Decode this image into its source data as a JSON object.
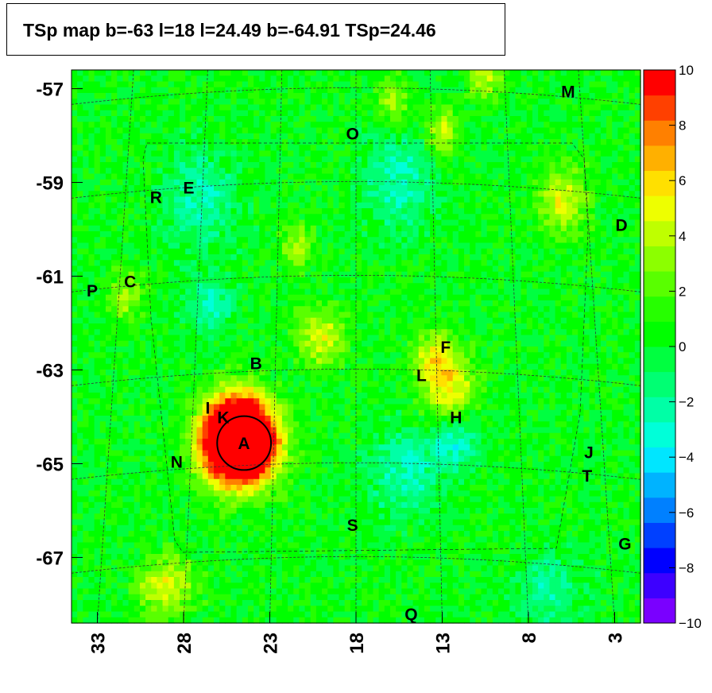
{
  "title": "TSp map b=-63 l=18 l=24.49 b=-64.91 TSp=24.46",
  "chart_data": {
    "type": "heatmap",
    "title": "TSp map b=-63 l=18 l=24.49 b=-64.91 TSp=24.46",
    "xlabel": "",
    "ylabel": "",
    "x_axis": {
      "reversed": true,
      "range": [
        34.5,
        1.5
      ],
      "ticks": [
        33,
        28,
        23,
        18,
        13,
        8,
        3
      ]
    },
    "y_axis": {
      "range": [
        -68.4,
        -56.6
      ],
      "ticks": [
        -57,
        -59,
        -61,
        -63,
        -65,
        -67
      ]
    },
    "colorbar": {
      "range": [
        -10,
        10
      ],
      "ticks": [
        10,
        8,
        6,
        4,
        2,
        0,
        -2,
        -4,
        -6,
        -8,
        -10
      ],
      "tick_labels": [
        "10",
        "8",
        "6",
        "4",
        "2",
        "0",
        "−2",
        "−4",
        "−6",
        "−8",
        "−10"
      ],
      "colors": [
        "#7a00ff",
        "#3d00ff",
        "#0000ff",
        "#0040ff",
        "#0080ff",
        "#00b3ff",
        "#00e6ff",
        "#00ffd9",
        "#00ffa6",
        "#00ff73",
        "#00ff40",
        "#00ff00",
        "#26ff00",
        "#59ff00",
        "#8cff00",
        "#bfff00",
        "#eeff00",
        "#ffe000",
        "#ffb000",
        "#ff8000",
        "#ff4000",
        "#ff0000"
      ]
    },
    "background_value": 0.3,
    "hotspots": [
      {
        "label": "A",
        "l": 24.8,
        "b": -64.5,
        "peak": 24.46,
        "width": 0.6
      },
      {
        "label": "",
        "l": 20.0,
        "b": -62.3,
        "peak": 4.5,
        "width": 0.45
      },
      {
        "label": "",
        "l": 12.6,
        "b": -63.4,
        "peak": 5.0,
        "width": 0.5
      },
      {
        "label": "",
        "l": 13.5,
        "b": -62.7,
        "peak": 4.0,
        "width": 0.4
      },
      {
        "label": "",
        "l": 6.0,
        "b": -59.4,
        "peak": 4.5,
        "width": 0.5
      },
      {
        "label": "",
        "l": 13.0,
        "b": -57.9,
        "peak": 4.0,
        "width": 0.35
      },
      {
        "label": "",
        "l": 10.5,
        "b": -56.7,
        "peak": 4.0,
        "width": 0.4
      },
      {
        "label": "",
        "l": 29.0,
        "b": -67.6,
        "peak": 4.5,
        "width": 0.45
      },
      {
        "label": "",
        "l": 21.5,
        "b": -60.4,
        "peak": 3.5,
        "width": 0.35
      },
      {
        "label": "",
        "l": 31.3,
        "b": -61.4,
        "peak": 3.5,
        "width": 0.35
      },
      {
        "label": "",
        "l": 15.8,
        "b": -57.3,
        "peak": 3.0,
        "width": 0.4
      },
      {
        "label": "",
        "l": 15.5,
        "b": -59.0,
        "peak": -3.0,
        "width": 0.7
      },
      {
        "label": "",
        "l": 27.0,
        "b": -59.4,
        "peak": -3.0,
        "width": 0.7
      },
      {
        "label": "",
        "l": 15.2,
        "b": -65.2,
        "peak": -3.0,
        "width": 0.6
      },
      {
        "label": "",
        "l": 12.2,
        "b": -64.5,
        "peak": -3.5,
        "width": 0.4
      },
      {
        "label": "",
        "l": 26.5,
        "b": -61.6,
        "peak": -3.0,
        "width": 0.4
      },
      {
        "label": "",
        "l": 6.8,
        "b": -67.7,
        "peak": -2.5,
        "width": 0.5
      }
    ],
    "source_labels": [
      {
        "label": "A",
        "l": 24.5,
        "b": -64.55
      },
      {
        "label": "B",
        "l": 23.8,
        "b": -62.85
      },
      {
        "label": "C",
        "l": 31.1,
        "b": -61.1
      },
      {
        "label": "D",
        "l": 2.6,
        "b": -59.9
      },
      {
        "label": "E",
        "l": 27.7,
        "b": -59.1
      },
      {
        "label": "F",
        "l": 12.8,
        "b": -62.5
      },
      {
        "label": "G",
        "l": 2.4,
        "b": -66.7
      },
      {
        "label": "H",
        "l": 12.2,
        "b": -64.0
      },
      {
        "label": "I",
        "l": 26.6,
        "b": -63.8
      },
      {
        "label": "J",
        "l": 4.5,
        "b": -64.75
      },
      {
        "label": "K",
        "l": 25.7,
        "b": -64.0
      },
      {
        "label": "L",
        "l": 14.2,
        "b": -63.1
      },
      {
        "label": "M",
        "l": 5.7,
        "b": -57.05
      },
      {
        "label": "N",
        "l": 28.4,
        "b": -64.95
      },
      {
        "label": "O",
        "l": 18.2,
        "b": -57.95
      },
      {
        "label": "P",
        "l": 33.3,
        "b": -61.3
      },
      {
        "label": "Q",
        "l": 14.8,
        "b": -68.2
      },
      {
        "label": "R",
        "l": 29.6,
        "b": -59.3
      },
      {
        "label": "S",
        "l": 18.2,
        "b": -66.3
      },
      {
        "label": "T",
        "l": 4.6,
        "b": -65.25
      }
    ],
    "circle": {
      "l": 24.49,
      "b": -64.91,
      "radius_deg": 0.5
    }
  }
}
